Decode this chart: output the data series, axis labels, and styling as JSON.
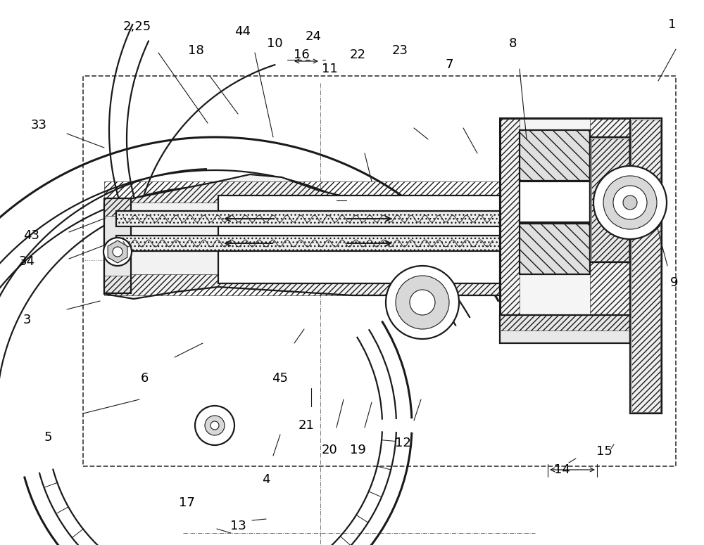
{
  "bg_color": "#ffffff",
  "line_color": "#1a1a1a",
  "fig_width": 10.0,
  "fig_height": 7.75,
  "leaders": [
    [
      195,
      38,
      225,
      75,
      295,
      175,
      "2,25"
    ],
    [
      955,
      35,
      960,
      70,
      935,
      115,
      "1"
    ],
    [
      55,
      178,
      95,
      190,
      148,
      210,
      "33"
    ],
    [
      45,
      335,
      98,
      330,
      150,
      310,
      "43"
    ],
    [
      38,
      372,
      98,
      368,
      150,
      348,
      "34"
    ],
    [
      38,
      455,
      95,
      440,
      142,
      428,
      "3"
    ],
    [
      278,
      72,
      298,
      108,
      338,
      162,
      "18"
    ],
    [
      345,
      45,
      362,
      75,
      388,
      195,
      "44"
    ],
    [
      390,
      62,
      408,
      85,
      428,
      85,
      "10"
    ],
    [
      428,
      78,
      434,
      85,
      440,
      85,
      "16"
    ],
    [
      445,
      52,
      458,
      85,
      462,
      85,
      "24"
    ],
    [
      468,
      98,
      478,
      285,
      492,
      285,
      "11"
    ],
    [
      508,
      78,
      518,
      218,
      528,
      258,
      "22"
    ],
    [
      568,
      72,
      588,
      182,
      608,
      198,
      "23"
    ],
    [
      638,
      92,
      658,
      182,
      678,
      218,
      "7"
    ],
    [
      728,
      62,
      738,
      98,
      748,
      198,
      "8"
    ],
    [
      958,
      402,
      948,
      378,
      928,
      302,
      "9"
    ],
    [
      68,
      622,
      118,
      588,
      198,
      568,
      "5"
    ],
    [
      205,
      538,
      248,
      508,
      288,
      488,
      "6"
    ],
    [
      398,
      538,
      418,
      488,
      432,
      468,
      "45"
    ],
    [
      435,
      605,
      442,
      578,
      442,
      552,
      "21"
    ],
    [
      468,
      640,
      478,
      608,
      488,
      568,
      "20"
    ],
    [
      508,
      640,
      518,
      608,
      528,
      572,
      "19"
    ],
    [
      572,
      630,
      588,
      598,
      598,
      568,
      "12"
    ],
    [
      265,
      715,
      308,
      752,
      328,
      758,
      "17"
    ],
    [
      378,
      682,
      388,
      648,
      398,
      618,
      "4"
    ],
    [
      338,
      748,
      358,
      740,
      378,
      738,
      "13"
    ],
    [
      798,
      668,
      808,
      658,
      818,
      652,
      "14"
    ],
    [
      858,
      642,
      868,
      638,
      872,
      632,
      "15"
    ]
  ]
}
